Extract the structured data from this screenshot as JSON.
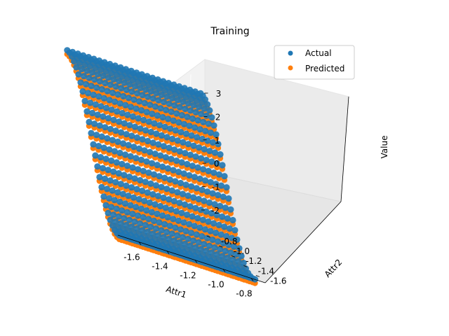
{
  "chart_data": {
    "type": "scatter",
    "projection": "3d",
    "title": "Training",
    "xlabel": "Attr1",
    "ylabel": "Attr2",
    "zlabel": "Value",
    "xlim": [
      -1.75,
      -0.7
    ],
    "ylim": [
      -1.75,
      -0.7
    ],
    "zlim": [
      -2.9,
      3.6
    ],
    "x_ticks": [
      "-1.6",
      "-1.4",
      "-1.2",
      "-1.0",
      "-0.8"
    ],
    "y_ticks": [
      "-1.6",
      "-1.4",
      "-1.2",
      "-1.0",
      "-0.8"
    ],
    "z_ticks": [
      "-2",
      "-1",
      "0",
      "1",
      "2",
      "3"
    ],
    "surface_function": "z = 3*sin(3.5*(y + 1.2))",
    "x_range": [
      -1.7,
      -0.75
    ],
    "y_range": [
      -1.7,
      -0.75
    ],
    "grid": true,
    "legend_position": "top-right",
    "series": [
      {
        "name": "Actual",
        "color": "#1f77b4"
      },
      {
        "name": "Predicted",
        "color": "#ff7f0e"
      }
    ]
  }
}
